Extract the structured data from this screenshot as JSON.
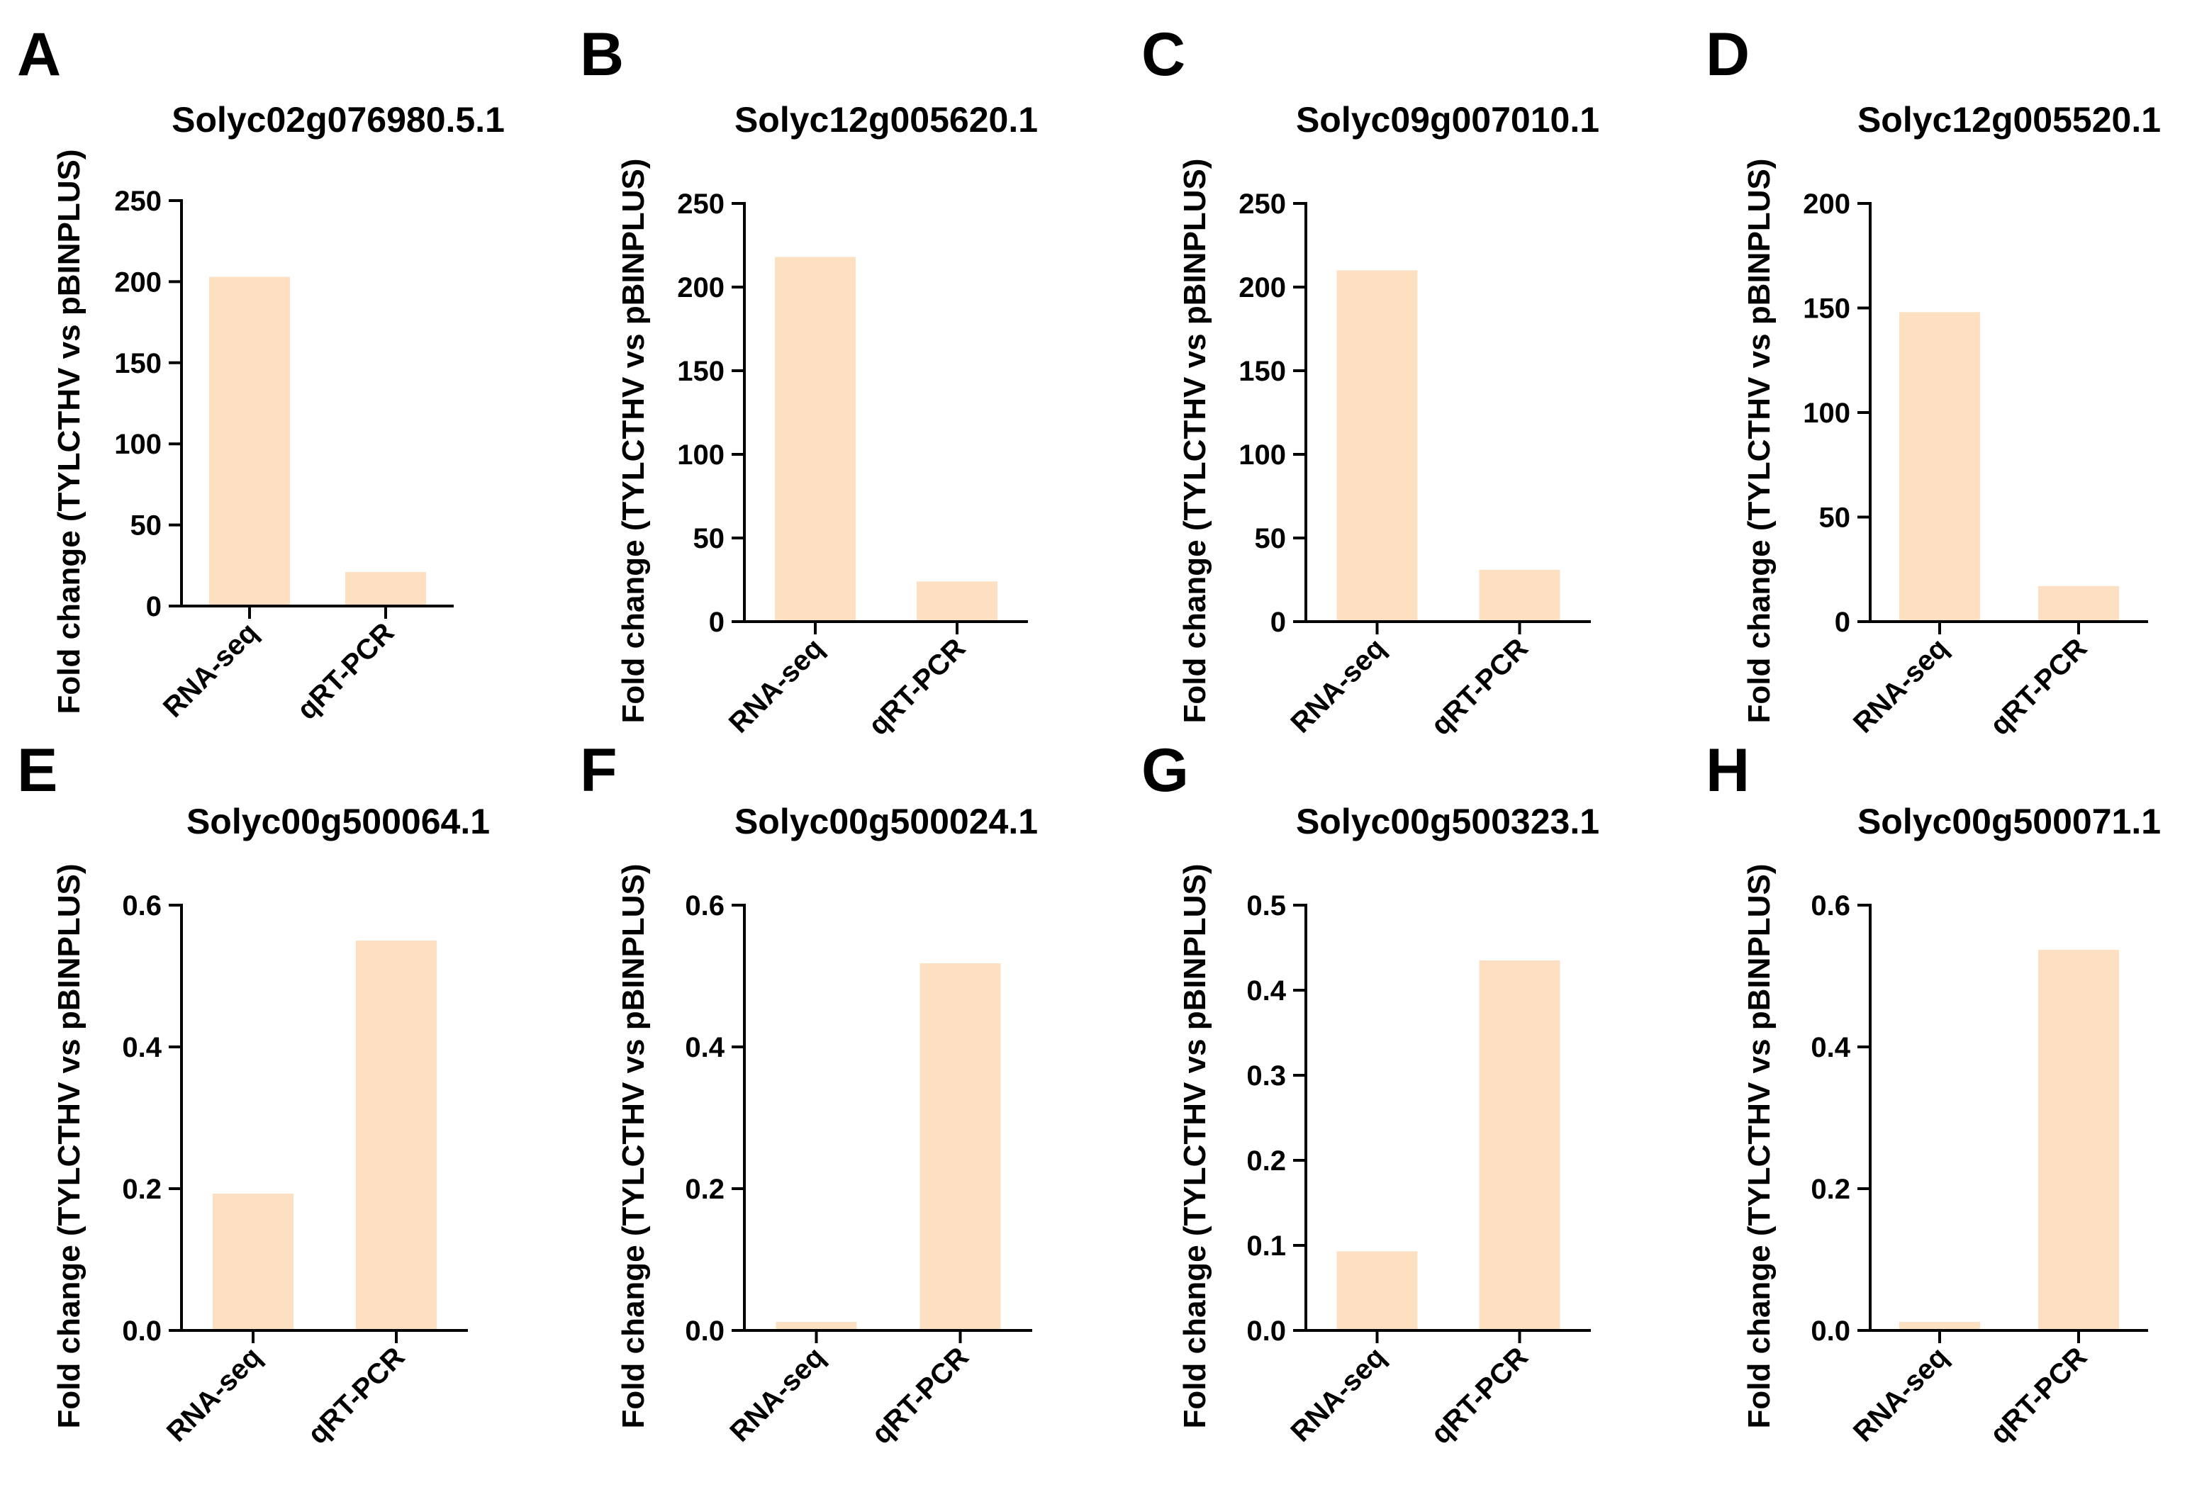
{
  "figure": {
    "ylabel": "Fold change (TYLCTHV vs pBINPLUS)",
    "bar_color": "#FDDFC1",
    "axis_color": "#000000"
  },
  "chart_data": [
    {
      "panel": "A",
      "type": "bar",
      "title": "Solyc02g076980.5.1",
      "categories": [
        "RNA-seq",
        "qRT-PCR"
      ],
      "values": [
        203,
        21
      ],
      "ylim": [
        0,
        250
      ],
      "yticks": [
        "0",
        "50",
        "100",
        "150",
        "200",
        "250"
      ],
      "ylabel": "Fold change (TYLCTHV vs pBINPLUS)"
    },
    {
      "panel": "B",
      "type": "bar",
      "title": "Solyc12g005620.1",
      "categories": [
        "RNA-seq",
        "qRT-PCR"
      ],
      "values": [
        218,
        24
      ],
      "ylim": [
        0,
        250
      ],
      "yticks": [
        "0",
        "50",
        "100",
        "150",
        "200",
        "250"
      ],
      "ylabel": "Fold change (TYLCTHV vs pBINPLUS)"
    },
    {
      "panel": "C",
      "type": "bar",
      "title": "Solyc09g007010.1",
      "categories": [
        "RNA-seq",
        "qRT-PCR"
      ],
      "values": [
        210,
        31
      ],
      "ylim": [
        0,
        250
      ],
      "yticks": [
        "0",
        "50",
        "100",
        "150",
        "200",
        "250"
      ],
      "ylabel": "Fold change (TYLCTHV vs pBINPLUS)"
    },
    {
      "panel": "D",
      "type": "bar",
      "title": "Solyc12g005520.1",
      "categories": [
        "RNA-seq",
        "qRT-PCR"
      ],
      "values": [
        148,
        17
      ],
      "ylim": [
        0,
        200
      ],
      "yticks": [
        "0",
        "50",
        "100",
        "150",
        "200"
      ],
      "ylabel": "Fold change (TYLCTHV vs pBINPLUS)"
    },
    {
      "panel": "E",
      "type": "bar",
      "title": "Solyc00g500064.1",
      "categories": [
        "RNA-seq",
        "qRT-PCR"
      ],
      "values": [
        0.193,
        0.55
      ],
      "ylim": [
        0,
        0.6
      ],
      "yticks": [
        "0.0",
        "0.2",
        "0.4",
        "0.6"
      ],
      "ylabel": "Fold change (TYLCTHV vs pBINPLUS)"
    },
    {
      "panel": "F",
      "type": "bar",
      "title": "Solyc00g500024.1",
      "categories": [
        "RNA-seq",
        "qRT-PCR"
      ],
      "values": [
        0.012,
        0.518
      ],
      "ylim": [
        0,
        0.6
      ],
      "yticks": [
        "0.0",
        "0.2",
        "0.4",
        "0.6"
      ],
      "ylabel": "Fold change (TYLCTHV vs pBINPLUS)"
    },
    {
      "panel": "G",
      "type": "bar",
      "title": "Solyc00g500323.1",
      "categories": [
        "RNA-seq",
        "qRT-PCR"
      ],
      "values": [
        0.093,
        0.435
      ],
      "ylim": [
        0,
        0.5
      ],
      "yticks": [
        "0.0",
        "0.1",
        "0.2",
        "0.3",
        "0.4",
        "0.5"
      ],
      "ylabel": "Fold change (TYLCTHV vs pBINPLUS)"
    },
    {
      "panel": "H",
      "type": "bar",
      "title": "Solyc00g500071.1",
      "categories": [
        "RNA-seq",
        "qRT-PCR"
      ],
      "values": [
        0.012,
        0.537
      ],
      "ylim": [
        0,
        0.6
      ],
      "yticks": [
        "0.0",
        "0.2",
        "0.4",
        "0.6"
      ],
      "ylabel": "Fold change (TYLCTHV vs pBINPLUS)"
    }
  ]
}
